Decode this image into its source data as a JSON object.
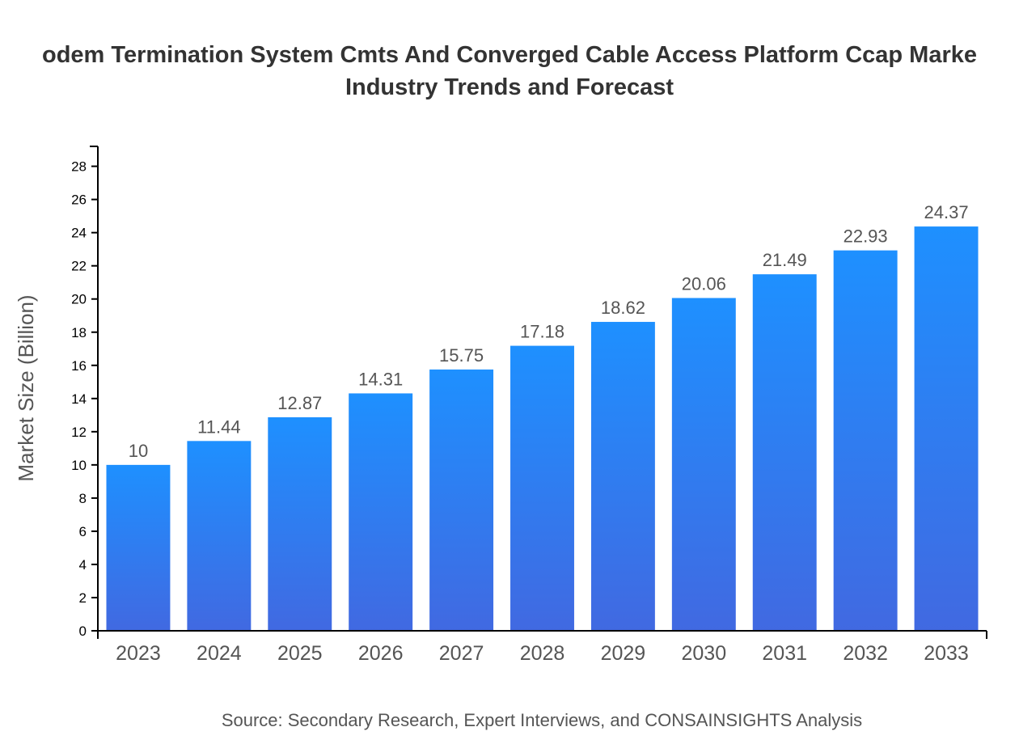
{
  "chart_data": {
    "type": "bar",
    "title_lines": [
      "odem Termination System Cmts And Converged Cable Access Platform Ccap Marke",
      "Industry Trends and Forecast"
    ],
    "xlabel": "",
    "ylabel": "Market Size (Billion)",
    "categories": [
      "2023",
      "2024",
      "2025",
      "2026",
      "2027",
      "2028",
      "2029",
      "2030",
      "2031",
      "2032",
      "2033"
    ],
    "values": [
      10,
      11.44,
      12.87,
      14.31,
      15.75,
      17.18,
      18.62,
      20.06,
      21.49,
      22.93,
      24.37
    ],
    "data_labels": [
      "10",
      "11.44",
      "12.87",
      "14.31",
      "15.75",
      "17.18",
      "18.62",
      "20.06",
      "21.49",
      "22.93",
      "24.37"
    ],
    "ylim": [
      0,
      29.2
    ],
    "yticks": [
      0,
      2,
      4,
      6,
      8,
      10,
      12,
      14,
      16,
      18,
      20,
      22,
      24,
      26,
      28
    ],
    "grid": false,
    "legend": "none",
    "colors": {
      "bar_top": "#1e90ff",
      "bar_bottom": "#4169e1"
    }
  },
  "source": "Source: Secondary Research, Expert Interviews, and CONSAINSIGHTS Analysis"
}
